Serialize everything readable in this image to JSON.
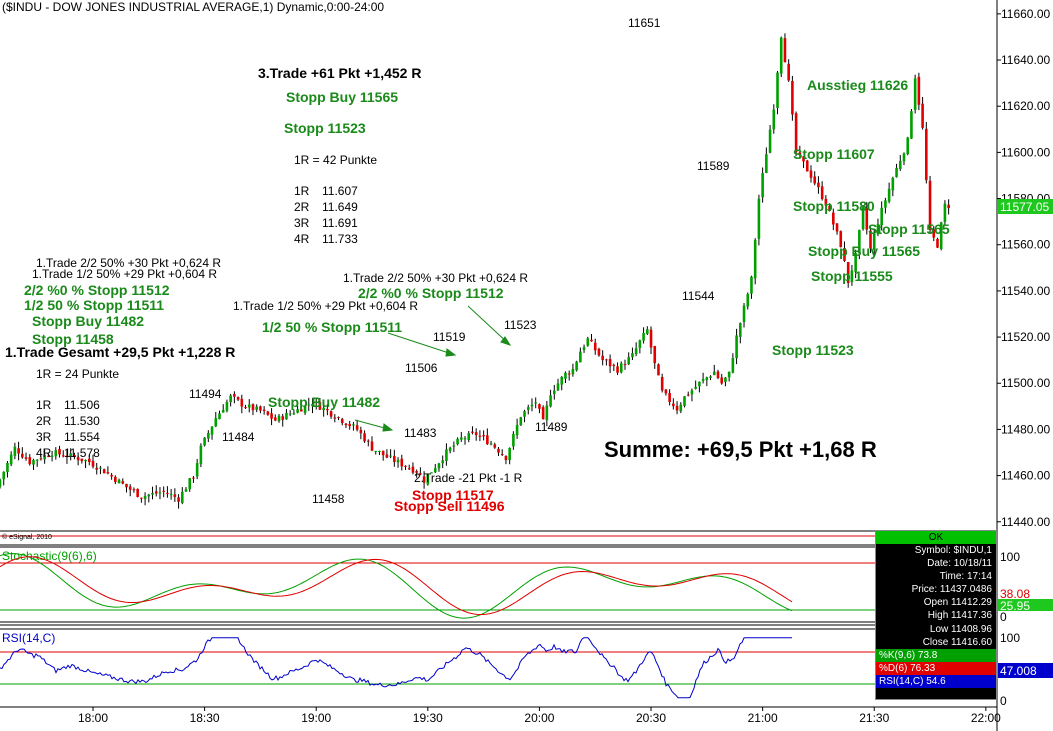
{
  "title": "($INDU - DOW JONES INDUSTRIAL AVERAGE,1) Dynamic,0:00-24:00",
  "copyright": "© eSignal, 2010",
  "summary": "Summe: +69,5 Pkt +1,68 R",
  "price_axis": {
    "ticks": [
      "11660.00",
      "11640.00",
      "11620.00",
      "11600.00",
      "11580.00",
      "11560.00",
      "11540.00",
      "11520.00",
      "11500.00",
      "11480.00",
      "11460.00",
      "11440.00"
    ],
    "last_price": "11577.05"
  },
  "time_axis": {
    "ticks": [
      "18:00",
      "18:30",
      "19:00",
      "19:30",
      "20:00",
      "20:30",
      "21:00",
      "21:30",
      "22:00"
    ]
  },
  "stoch": {
    "label": "Stochastic(9(6),6)",
    "ticks": [
      "100",
      "0"
    ],
    "k_value": "25.95",
    "d_value": "38.08"
  },
  "rsi": {
    "label": "RSI(14,C)",
    "ticks": [
      "100",
      "0"
    ],
    "value": "47.008"
  },
  "colors": {
    "up": "#00a000",
    "down": "#e00000",
    "green_text": "#1a8a1a",
    "red_text": "#e00000",
    "rsi": "#0000cc"
  },
  "annotations": {
    "t1_gesamt": "1.Trade Gesamt +29,5 Pkt +1,228 R",
    "t1_r": "1R = 24 Punkte",
    "t1_levels": [
      [
        "1R",
        "11.506"
      ],
      [
        "2R",
        "11.530"
      ],
      [
        "3R",
        "11.554"
      ],
      [
        "4R",
        "11.578"
      ]
    ],
    "t1_22": "1.Trade 2/2 50% +30 Pkt +0,624 R",
    "t1_12": "1.Trade 1/2 50% +29 Pkt +0,604 R",
    "t1_s1": "2/2 %0 % Stopp 11512",
    "t1_s2": "1/2 50 % Stopp 11511",
    "t1_s3": "Stopp Buy 11482",
    "t1_s4": "Stopp 11458",
    "mid_12": "1.Trade 1/2 50% +29 Pkt +0,604 R",
    "mid_s2": "1/2 50 % Stopp 11511",
    "mid_22": "1.Trade 2/2 50% +30 Pkt +0,624 R",
    "mid_s1": "2/2 %0 % Stopp 11512",
    "mid_buy": "Stopp Buy 11482",
    "t2": "2.Trade -21 Pkt -1 R",
    "t2_s1": "Stopp 11517",
    "t2_s2": "Stopp Sell 11496",
    "t3": "3.Trade +61 Pkt +1,452 R",
    "t3_buy": "Stopp Buy 11565",
    "t3_stop": "Stopp 11523",
    "t3_r": "1R = 42 Punkte",
    "t3_levels": [
      [
        "1R",
        "11.607"
      ],
      [
        "2R",
        "11.649"
      ],
      [
        "3R",
        "11.691"
      ],
      [
        "4R",
        "11.733"
      ]
    ],
    "r_ausstieg": "Ausstieg 11626",
    "r_s1": "Stopp 11607",
    "r_s2": "Stopp 11580",
    "r_s3": "Stopp 11565",
    "r_s4": "Stopp Buy 11565",
    "r_s5": "Stopp 11555",
    "r_s6": "Stopp 11523"
  },
  "price_labels": [
    "11651",
    "11589",
    "11544",
    "11523",
    "11519",
    "11506",
    "11483",
    "11489",
    "11494",
    "11484",
    "11458"
  ],
  "databox": {
    "ok": "OK",
    "rows": [
      "Symbol: $INDU,1",
      "Date: 10/18/11",
      "Time: 17:14",
      "Price: 11437.0486",
      "Open 11412.29",
      "High 11417.36",
      "Low 11408.96",
      "Close 11416.60"
    ],
    "k": "%K(9,6) 73.8",
    "d": "%D(6) 76.33",
    "rsi": "RSI(14,C) 54.6"
  },
  "chart_data": {
    "type": "candlestick",
    "title": "($INDU - DOW JONES INDUSTRIAL AVERAGE,1) Dynamic,0:00-24:00",
    "ylim": [
      11436,
      11666
    ],
    "x_range": [
      "17:35",
      "22:03"
    ],
    "price_path": [
      [
        "17:35",
        11455
      ],
      [
        "17:40",
        11472
      ],
      [
        "17:44",
        11466
      ],
      [
        "17:50",
        11470
      ],
      [
        "17:56",
        11468
      ],
      [
        "18:00",
        11466
      ],
      [
        "18:04",
        11462
      ],
      [
        "18:10",
        11455
      ],
      [
        "18:14",
        11451
      ],
      [
        "18:20",
        11453
      ],
      [
        "18:24",
        11450
      ],
      [
        "18:28",
        11460
      ],
      [
        "18:30",
        11472
      ],
      [
        "18:34",
        11485
      ],
      [
        "18:38",
        11494
      ],
      [
        "18:42",
        11490
      ],
      [
        "18:46",
        11488
      ],
      [
        "18:50",
        11484
      ],
      [
        "18:54",
        11487
      ],
      [
        "18:58",
        11490
      ],
      [
        "19:00",
        11492
      ],
      [
        "19:04",
        11488
      ],
      [
        "19:08",
        11484
      ],
      [
        "19:12",
        11480
      ],
      [
        "19:16",
        11472
      ],
      [
        "19:20",
        11468
      ],
      [
        "19:24",
        11465
      ],
      [
        "19:28",
        11462
      ],
      [
        "19:30",
        11458
      ],
      [
        "19:32",
        11462
      ],
      [
        "19:36",
        11470
      ],
      [
        "19:40",
        11476
      ],
      [
        "19:44",
        11478
      ],
      [
        "19:48",
        11474
      ],
      [
        "19:52",
        11468
      ],
      [
        "19:56",
        11486
      ],
      [
        "20:00",
        11492
      ],
      [
        "20:02",
        11483
      ],
      [
        "20:04",
        11496
      ],
      [
        "20:08",
        11504
      ],
      [
        "20:10",
        11506
      ],
      [
        "20:12",
        11514
      ],
      [
        "20:14",
        11519
      ],
      [
        "20:18",
        11510
      ],
      [
        "20:22",
        11506
      ],
      [
        "20:26",
        11512
      ],
      [
        "20:28",
        11518
      ],
      [
        "20:30",
        11523
      ],
      [
        "20:32",
        11508
      ],
      [
        "20:34",
        11496
      ],
      [
        "20:38",
        11489
      ],
      [
        "20:40",
        11494
      ],
      [
        "20:44",
        11500
      ],
      [
        "20:48",
        11505
      ],
      [
        "20:50",
        11500
      ],
      [
        "20:52",
        11504
      ],
      [
        "20:54",
        11520
      ],
      [
        "20:58",
        11545
      ],
      [
        "21:00",
        11580
      ],
      [
        "21:04",
        11620
      ],
      [
        "21:06",
        11651
      ],
      [
        "21:08",
        11630
      ],
      [
        "21:10",
        11600
      ],
      [
        "21:14",
        11590
      ],
      [
        "21:18",
        11578
      ],
      [
        "21:22",
        11560
      ],
      [
        "21:24",
        11544
      ],
      [
        "21:26",
        11555
      ],
      [
        "21:28",
        11575
      ],
      [
        "21:30",
        11558
      ],
      [
        "21:32",
        11570
      ],
      [
        "21:36",
        11589
      ],
      [
        "21:40",
        11605
      ],
      [
        "21:42",
        11633
      ],
      [
        "21:44",
        11610
      ],
      [
        "21:46",
        11565
      ],
      [
        "21:48",
        11560
      ],
      [
        "21:50",
        11577
      ]
    ],
    "stochastic_last": {
      "k": 25.95,
      "d": 38.08
    },
    "rsi_last": 47.008
  }
}
